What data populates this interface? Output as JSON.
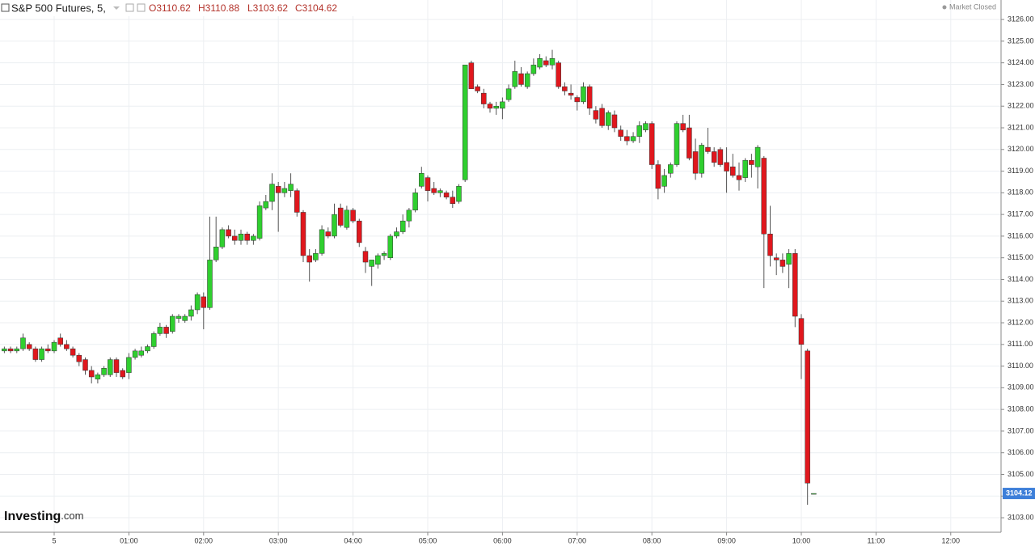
{
  "header": {
    "title": "S&P 500 Futures, 5,",
    "open": "O3110.62",
    "high": "H3110.88",
    "low": "L3103.62",
    "close": "C3104.62",
    "status": "Market Closed",
    "logo": [
      "Investing",
      ".com"
    ]
  },
  "chart_data": {
    "type": "candlestick",
    "x": [
      -40,
      -35,
      -30,
      -25,
      -20,
      -15,
      -10,
      -5,
      0,
      5,
      10,
      15,
      20,
      25,
      30,
      35,
      40,
      45,
      50,
      55,
      60,
      65,
      70,
      75,
      80,
      85,
      90,
      95,
      100,
      105,
      110,
      115,
      120,
      125,
      130,
      135,
      140,
      145,
      150,
      155,
      160,
      165,
      170,
      175,
      180,
      185,
      190,
      195,
      200,
      205,
      210,
      215,
      220,
      225,
      230,
      235,
      240,
      245,
      250,
      255,
      260,
      265,
      270,
      275,
      280,
      285,
      290,
      295,
      300,
      305,
      310,
      315,
      320,
      325,
      330,
      335,
      340,
      345,
      350,
      355,
      360,
      365,
      370,
      375,
      380,
      385,
      390,
      395,
      400,
      405,
      410,
      415,
      420,
      425,
      430,
      435,
      440,
      445,
      450,
      455,
      460,
      465,
      470,
      475,
      480,
      485,
      490,
      495,
      500,
      505,
      510,
      515,
      520,
      525,
      530,
      535,
      540,
      545,
      550,
      555,
      560,
      565,
      570,
      575,
      580,
      585,
      590,
      595,
      600,
      605,
      610
    ],
    "open": [
      3110.7,
      3110.8,
      3110.7,
      3110.8,
      3111.0,
      3110.8,
      3110.3,
      3110.8,
      3110.7,
      3111.3,
      3111.0,
      3110.8,
      3110.5,
      3110.3,
      3109.8,
      3109.4,
      3109.6,
      3109.6,
      3110.3,
      3109.8,
      3109.7,
      3110.4,
      3110.5,
      3110.7,
      3110.9,
      3111.5,
      3111.8,
      3111.6,
      3112.2,
      3112.1,
      3112.3,
      3112.6,
      3113.2,
      3112.7,
      3114.9,
      3115.5,
      3116.3,
      3116.0,
      3115.8,
      3116.1,
      3115.8,
      3115.9,
      3117.3,
      3117.6,
      3118.3,
      3118.0,
      3118.1,
      3118.1,
      3117.1,
      3115.1,
      3114.9,
      3115.2,
      3116.2,
      3116.0,
      3117.3,
      3116.4,
      3117.2,
      3116.7,
      3115.3,
      3114.6,
      3114.7,
      3115.1,
      3115.0,
      3116.0,
      3116.2,
      3116.7,
      3117.2,
      3118.3,
      3118.7,
      3118.2,
      3118.0,
      3118.0,
      3117.8,
      3117.6,
      3118.6,
      3124.0,
      3122.9,
      3122.6,
      3122.1,
      3121.9,
      3121.9,
      3122.3,
      3122.9,
      3123.5,
      3122.9,
      3123.5,
      3123.8,
      3124.1,
      3123.9,
      3124.0,
      3122.9,
      3122.6,
      3122.4,
      3122.2,
      3122.9,
      3121.8,
      3121.9,
      3121.1,
      3121.6,
      3120.9,
      3120.6,
      3120.4,
      3120.6,
      3120.9,
      3121.2,
      3119.3,
      3118.3,
      3118.9,
      3119.3,
      3121.2,
      3121.0,
      3119.9,
      3118.9,
      3120.1,
      3119.9,
      3120.0,
      3119.4,
      3119.2,
      3118.8,
      3118.7,
      3119.5,
      3119.2,
      3119.6,
      3116.1,
      3115.0,
      3114.9,
      3114.7,
      3115.2,
      3112.2,
      3110.7,
      3104.12
    ],
    "high": [
      3110.9,
      3110.9,
      3110.9,
      3111.5,
      3111.1,
      3110.9,
      3110.9,
      3111.0,
      3111.2,
      3111.5,
      3111.2,
      3110.9,
      3110.6,
      3110.4,
      3110.0,
      3109.7,
      3110.0,
      3110.4,
      3110.4,
      3109.9,
      3110.6,
      3110.8,
      3110.9,
      3111.0,
      3111.6,
      3112.0,
      3111.9,
      3112.4,
      3112.4,
      3112.4,
      3112.8,
      3113.4,
      3113.4,
      3116.9,
      3116.9,
      3116.4,
      3116.5,
      3116.3,
      3116.3,
      3116.2,
      3116.1,
      3117.6,
      3117.9,
      3118.9,
      3118.5,
      3118.5,
      3118.9,
      3118.2,
      3117.2,
      3115.4,
      3115.4,
      3116.5,
      3116.4,
      3117.5,
      3117.5,
      3117.4,
      3117.3,
      3116.8,
      3115.5,
      3114.9,
      3115.2,
      3115.3,
      3116.1,
      3116.4,
      3117.0,
      3117.3,
      3118.2,
      3119.2,
      3118.8,
      3118.5,
      3118.2,
      3118.1,
      3118.1,
      3118.4,
      3123.9,
      3124.1,
      3123.0,
      3122.8,
      3122.2,
      3122.2,
      3122.4,
      3123.0,
      3124.1,
      3123.8,
      3123.6,
      3124.2,
      3124.4,
      3124.3,
      3124.6,
      3124.1,
      3123.1,
      3123.0,
      3122.5,
      3123.1,
      3123.0,
      3122.0,
      3122.1,
      3121.8,
      3121.8,
      3121.1,
      3120.9,
      3120.8,
      3121.3,
      3121.3,
      3121.3,
      3119.5,
      3119.1,
      3119.4,
      3121.3,
      3121.6,
      3121.6,
      3120.5,
      3120.3,
      3121.0,
      3120.1,
      3120.1,
      3120.1,
      3119.8,
      3119.4,
      3119.6,
      3119.8,
      3120.2,
      3119.7,
      3117.4,
      3115.2,
      3115.2,
      3115.4,
      3115.4,
      3112.4,
      3110.8,
      3104.12
    ],
    "low": [
      3110.6,
      3110.6,
      3110.6,
      3110.7,
      3110.7,
      3110.2,
      3110.2,
      3110.6,
      3110.6,
      3110.9,
      3110.7,
      3110.4,
      3110.0,
      3109.6,
      3109.2,
      3109.2,
      3109.5,
      3109.5,
      3109.5,
      3109.4,
      3109.4,
      3110.3,
      3110.4,
      3110.6,
      3110.8,
      3111.4,
      3111.3,
      3111.5,
      3112.0,
      3112.0,
      3112.1,
      3112.4,
      3111.7,
      3112.6,
      3114.8,
      3115.4,
      3115.9,
      3115.6,
      3115.6,
      3115.6,
      3115.6,
      3115.8,
      3117.2,
      3117.2,
      3116.2,
      3117.8,
      3117.8,
      3116.9,
      3114.8,
      3113.9,
      3114.8,
      3115.1,
      3115.9,
      3115.9,
      3116.4,
      3116.3,
      3116.6,
      3115.5,
      3114.3,
      3113.7,
      3114.5,
      3114.9,
      3114.9,
      3115.9,
      3116.1,
      3116.4,
      3117.1,
      3118.2,
      3117.6,
      3117.9,
      3117.8,
      3117.7,
      3117.3,
      3117.5,
      3118.5,
      3122.8,
      3122.6,
      3121.9,
      3121.7,
      3121.6,
      3121.4,
      3122.2,
      3122.8,
      3122.9,
      3122.8,
      3123.4,
      3123.7,
      3123.8,
      3123.7,
      3122.8,
      3122.5,
      3122.3,
      3121.8,
      3122.1,
      3121.6,
      3121.2,
      3121.0,
      3120.9,
      3120.8,
      3120.4,
      3120.2,
      3120.3,
      3120.3,
      3120.8,
      3119.1,
      3117.7,
      3118.0,
      3118.7,
      3119.2,
      3120.8,
      3119.5,
      3118.6,
      3118.7,
      3119.8,
      3119.2,
      3119.2,
      3118.0,
      3118.7,
      3118.1,
      3118.5,
      3118.7,
      3118.2,
      3113.6,
      3114.6,
      3114.2,
      3114.3,
      3113.6,
      3111.8,
      3109.4,
      3103.6,
      3104.12
    ],
    "close": [
      3110.8,
      3110.7,
      3110.8,
      3111.3,
      3110.8,
      3110.3,
      3110.8,
      3110.7,
      3111.1,
      3111.0,
      3110.8,
      3110.5,
      3110.2,
      3109.8,
      3109.5,
      3109.6,
      3109.9,
      3110.3,
      3109.7,
      3109.5,
      3110.4,
      3110.7,
      3110.7,
      3110.9,
      3111.5,
      3111.8,
      3111.5,
      3112.3,
      3112.3,
      3112.3,
      3112.6,
      3113.3,
      3112.7,
      3114.9,
      3115.5,
      3116.3,
      3116.0,
      3115.8,
      3116.1,
      3115.8,
      3116.0,
      3117.4,
      3117.6,
      3118.4,
      3118.0,
      3118.2,
      3118.4,
      3117.1,
      3115.1,
      3114.8,
      3115.2,
      3116.3,
      3116.0,
      3117.0,
      3116.5,
      3117.2,
      3116.7,
      3115.7,
      3114.8,
      3114.9,
      3115.1,
      3115.2,
      3116.0,
      3116.2,
      3116.7,
      3117.2,
      3118.0,
      3118.9,
      3118.1,
      3118.0,
      3118.1,
      3117.8,
      3117.5,
      3118.3,
      3123.9,
      3122.8,
      3122.7,
      3122.1,
      3121.9,
      3122.0,
      3122.2,
      3122.8,
      3123.6,
      3123.0,
      3123.5,
      3123.9,
      3124.2,
      3123.9,
      3124.2,
      3122.9,
      3122.7,
      3122.5,
      3122.2,
      3122.9,
      3121.9,
      3121.4,
      3121.1,
      3121.7,
      3121.0,
      3120.6,
      3120.4,
      3120.6,
      3121.1,
      3121.2,
      3119.3,
      3118.2,
      3118.8,
      3119.3,
      3121.2,
      3120.9,
      3119.6,
      3118.9,
      3120.2,
      3119.9,
      3119.4,
      3119.3,
      3119.0,
      3118.8,
      3118.6,
      3119.5,
      3119.3,
      3120.1,
      3116.1,
      3115.1,
      3114.9,
      3114.6,
      3115.2,
      3112.3,
      3111.0,
      3104.6,
      3104.12
    ],
    "up_color": "#2fcf2f",
    "down_color": "#e0171d",
    "xlim": [
      -43.5,
      760.4
    ],
    "xticks": [
      {
        "value": 0,
        "label": "5"
      },
      {
        "value": 60,
        "label": "01:00"
      },
      {
        "value": 120,
        "label": "02:00"
      },
      {
        "value": 180,
        "label": "03:00"
      },
      {
        "value": 240,
        "label": "04:00"
      },
      {
        "value": 300,
        "label": "05:00"
      },
      {
        "value": 360,
        "label": "06:00"
      },
      {
        "value": 420,
        "label": "07:00"
      },
      {
        "value": 480,
        "label": "08:00"
      },
      {
        "value": 540,
        "label": "09:00"
      },
      {
        "value": 600,
        "label": "10:00"
      },
      {
        "value": 660,
        "label": "11:00"
      },
      {
        "value": 720,
        "label": "12:00"
      }
    ],
    "ylim": [
      3102.33,
      3126.9
    ],
    "yticks": [
      {
        "value": 3103,
        "label": "3103.00"
      },
      {
        "value": 3104,
        "label": "3104.00"
      },
      {
        "value": 3105,
        "label": "3105.00"
      },
      {
        "value": 3106,
        "label": "3106.00"
      },
      {
        "value": 3107,
        "label": "3107.00"
      },
      {
        "value": 3108,
        "label": "3108.00"
      },
      {
        "value": 3109,
        "label": "3109.00"
      },
      {
        "value": 3110,
        "label": "3110.00"
      },
      {
        "value": 3111,
        "label": "3111.00"
      },
      {
        "value": 3112,
        "label": "3112.00"
      },
      {
        "value": 3113,
        "label": "3113.00"
      },
      {
        "value": 3114,
        "label": "3114.00"
      },
      {
        "value": 3115,
        "label": "3115.00"
      },
      {
        "value": 3116,
        "label": "3116.00"
      },
      {
        "value": 3117,
        "label": "3117.00"
      },
      {
        "value": 3118,
        "label": "3118.00"
      },
      {
        "value": 3119,
        "label": "3119.00"
      },
      {
        "value": 3120,
        "label": "3120.00"
      },
      {
        "value": 3121,
        "label": "3121.00"
      },
      {
        "value": 3122,
        "label": "3122.00"
      },
      {
        "value": 3123,
        "label": "3123.00"
      },
      {
        "value": 3124,
        "label": "3124.00"
      },
      {
        "value": 3125,
        "label": "3125.00"
      },
      {
        "value": 3126,
        "label": "3126.00"
      }
    ],
    "grid": true,
    "last_price_color": "#3d7fd9"
  }
}
